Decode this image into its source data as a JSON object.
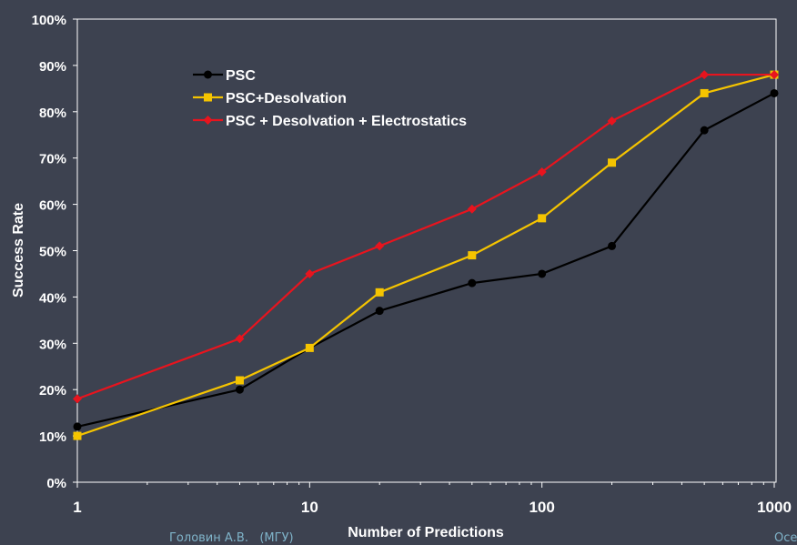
{
  "chart_data": {
    "type": "line",
    "title": "",
    "xlabel": "Number of Predictions",
    "ylabel": "Success Rate",
    "x_scale": "log",
    "xlim": [
      1,
      1000
    ],
    "ylim": [
      0,
      100
    ],
    "x_ticks": [
      "1",
      "10",
      "100",
      "1000"
    ],
    "y_ticks": [
      "0%",
      "10%",
      "20%",
      "30%",
      "40%",
      "50%",
      "60%",
      "70%",
      "80%",
      "90%",
      "100%"
    ],
    "grid": false,
    "legend_position": "top-left",
    "series": [
      {
        "name": "PSC",
        "color": "#000000",
        "marker": "circle",
        "x": [
          1,
          5,
          10,
          20,
          50,
          100,
          200,
          500,
          1000
        ],
        "values": [
          12,
          20,
          29,
          37,
          43,
          45,
          51,
          76,
          84
        ]
      },
      {
        "name": "PSC+Desolvation",
        "color": "#f5c400",
        "marker": "square",
        "x": [
          1,
          5,
          10,
          20,
          50,
          100,
          200,
          500,
          1000
        ],
        "values": [
          10,
          22,
          29,
          41,
          49,
          57,
          69,
          84,
          88
        ]
      },
      {
        "name": "PSC + Desolvation + Electrostatics",
        "color": "#e8141e",
        "marker": "diamond",
        "x": [
          1,
          5,
          10,
          20,
          50,
          100,
          200,
          500,
          1000
        ],
        "values": [
          18,
          31,
          45,
          51,
          59,
          67,
          78,
          88,
          88
        ]
      }
    ]
  },
  "footer": {
    "left": "Головин А.В.   (МГУ)",
    "right": "Осе"
  }
}
